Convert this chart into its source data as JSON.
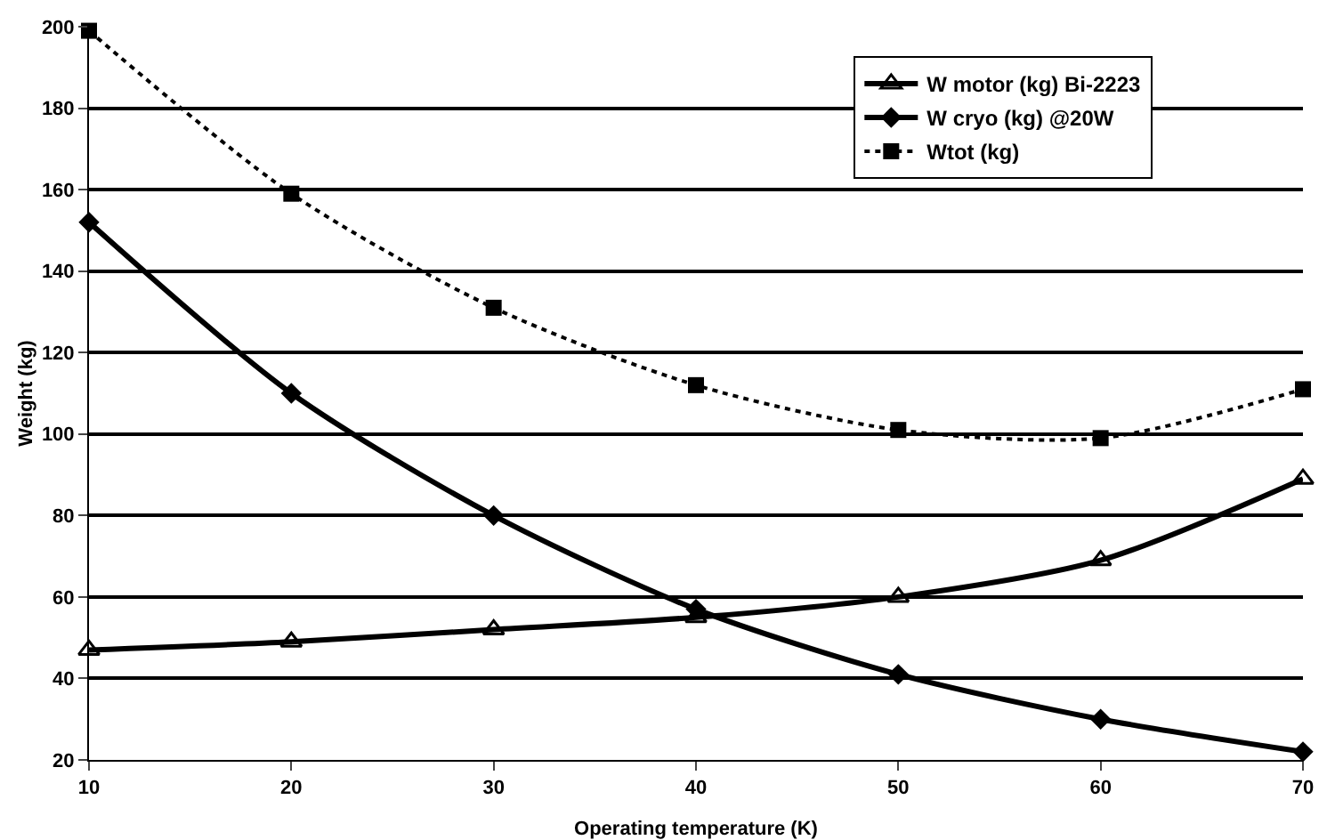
{
  "chart_data": {
    "type": "line",
    "xlabel": "Operating temperature (K)",
    "ylabel": "Weight (kg)",
    "x": [
      10,
      20,
      30,
      40,
      50,
      60,
      70
    ],
    "series": [
      {
        "name": "W motor (kg) Bi-2223",
        "color": "#000000",
        "marker": "triangle",
        "line_style": "solid",
        "values": [
          47,
          49,
          52,
          55,
          60,
          69,
          89
        ]
      },
      {
        "name": "W cryo (kg) @20W",
        "color": "#000000",
        "marker": "diamond",
        "line_style": "solid",
        "values": [
          152,
          110,
          80,
          57,
          41,
          30,
          22
        ]
      },
      {
        "name": "Wtot (kg)",
        "color": "#000000",
        "marker": "square",
        "line_style": "dotted",
        "values": [
          199,
          159,
          131,
          112,
          101,
          99,
          111
        ]
      }
    ],
    "xlim": [
      10,
      70
    ],
    "xticks": [
      10,
      20,
      30,
      40,
      50,
      60,
      70
    ],
    "ylim": [
      20,
      200
    ],
    "yticks": [
      20,
      40,
      60,
      80,
      100,
      120,
      140,
      160,
      180,
      200
    ],
    "grid": "y",
    "legend": "top right"
  }
}
